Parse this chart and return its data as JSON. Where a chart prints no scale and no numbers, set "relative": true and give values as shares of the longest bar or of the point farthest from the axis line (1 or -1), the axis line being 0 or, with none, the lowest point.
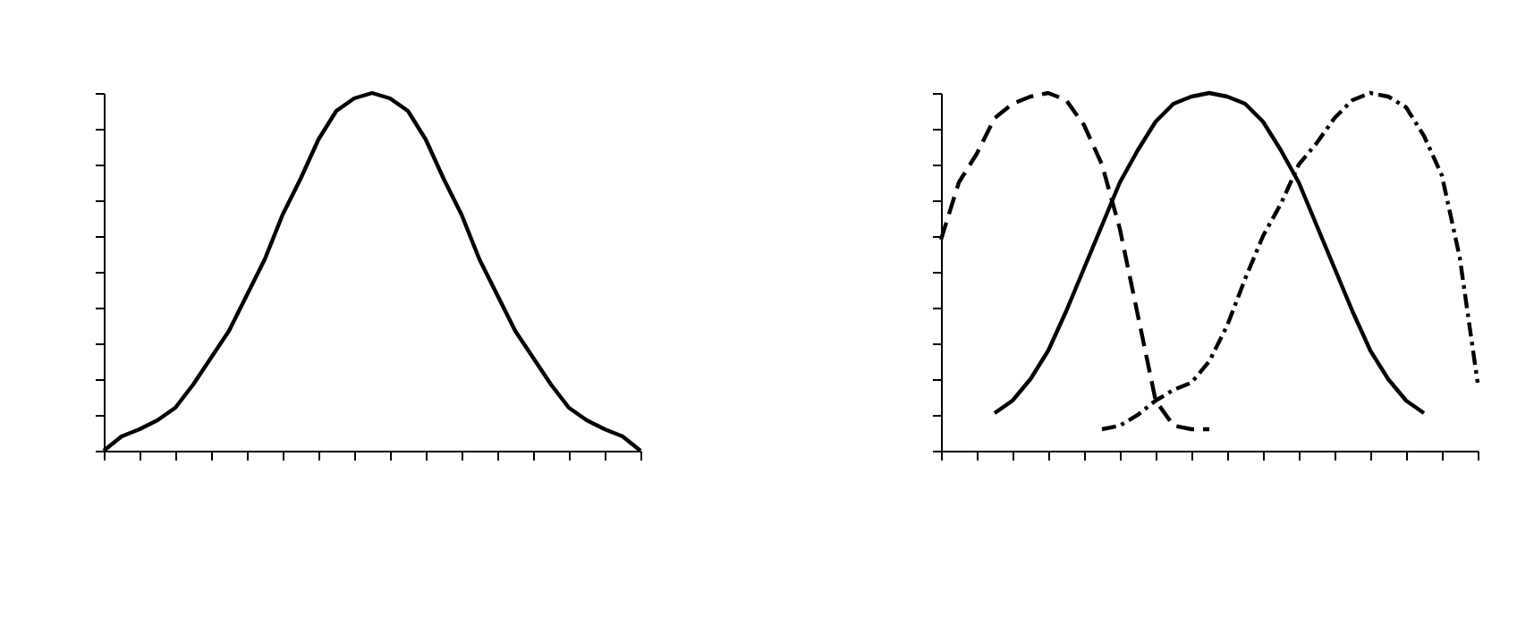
{
  "chart_data": [
    {
      "type": "line",
      "relative": true,
      "categories": [
        null,
        null,
        null,
        null,
        null,
        null,
        null,
        null,
        null,
        null,
        null,
        null,
        null,
        null,
        null,
        null,
        null,
        null,
        null,
        null,
        null,
        null,
        null,
        null,
        null,
        null,
        null,
        null,
        null,
        null,
        null
      ],
      "series": [
        {
          "color": "#000000",
          "line_style": "solid",
          "values": [
            0,
            0.04,
            0.06,
            0.085,
            0.12,
            0.185,
            0.26,
            0.335,
            0.435,
            0.535,
            0.66,
            0.76,
            0.87,
            0.95,
            0.985,
            1,
            0.985,
            0.95,
            0.87,
            0.76,
            0.66,
            0.535,
            0.435,
            0.335,
            0.26,
            0.185,
            0.12,
            0.085,
            0.06,
            0.04,
            0
          ]
        }
      ]
    },
    {
      "type": "line",
      "relative": true,
      "categories": [
        null,
        null,
        null,
        null,
        null,
        null,
        null,
        null,
        null,
        null,
        null,
        null,
        null,
        null,
        null,
        null,
        null,
        null,
        null,
        null,
        null,
        null,
        null,
        null,
        null,
        null,
        null,
        null,
        null,
        null,
        null
      ],
      "series": [
        {
          "color": "#000000",
          "line_style": "solid",
          "values": [
            null,
            null,
            null,
            0.105,
            0.14,
            0.2,
            0.28,
            0.39,
            0.51,
            0.63,
            0.75,
            0.84,
            0.92,
            0.97,
            0.99,
            1,
            0.99,
            0.97,
            0.92,
            0.84,
            0.75,
            0.63,
            0.51,
            0.39,
            0.28,
            0.2,
            0.14,
            0.105,
            null,
            null,
            null
          ]
        },
        {
          "color": "#000000",
          "line_style": "dashed",
          "values": [
            0.59,
            0.75,
            0.83,
            0.93,
            0.97,
            0.99,
            1,
            0.98,
            0.91,
            0.8,
            0.62,
            0.38,
            0.14,
            0.07,
            0.06,
            0.06,
            null,
            null,
            null,
            null,
            null,
            null,
            null,
            null,
            null,
            null,
            null,
            null,
            null,
            null,
            null
          ]
        },
        {
          "color": "#000000",
          "line_style": "dotted",
          "values": [
            null,
            null,
            null,
            null,
            null,
            null,
            null,
            null,
            null,
            0.06,
            0.07,
            0.1,
            0.14,
            0.17,
            0.19,
            0.25,
            0.35,
            0.48,
            0.6,
            0.69,
            0.8,
            0.86,
            0.93,
            0.98,
            1,
            0.99,
            0.96,
            0.88,
            0.77,
            0.54,
            0.19
          ]
        }
      ]
    }
  ]
}
